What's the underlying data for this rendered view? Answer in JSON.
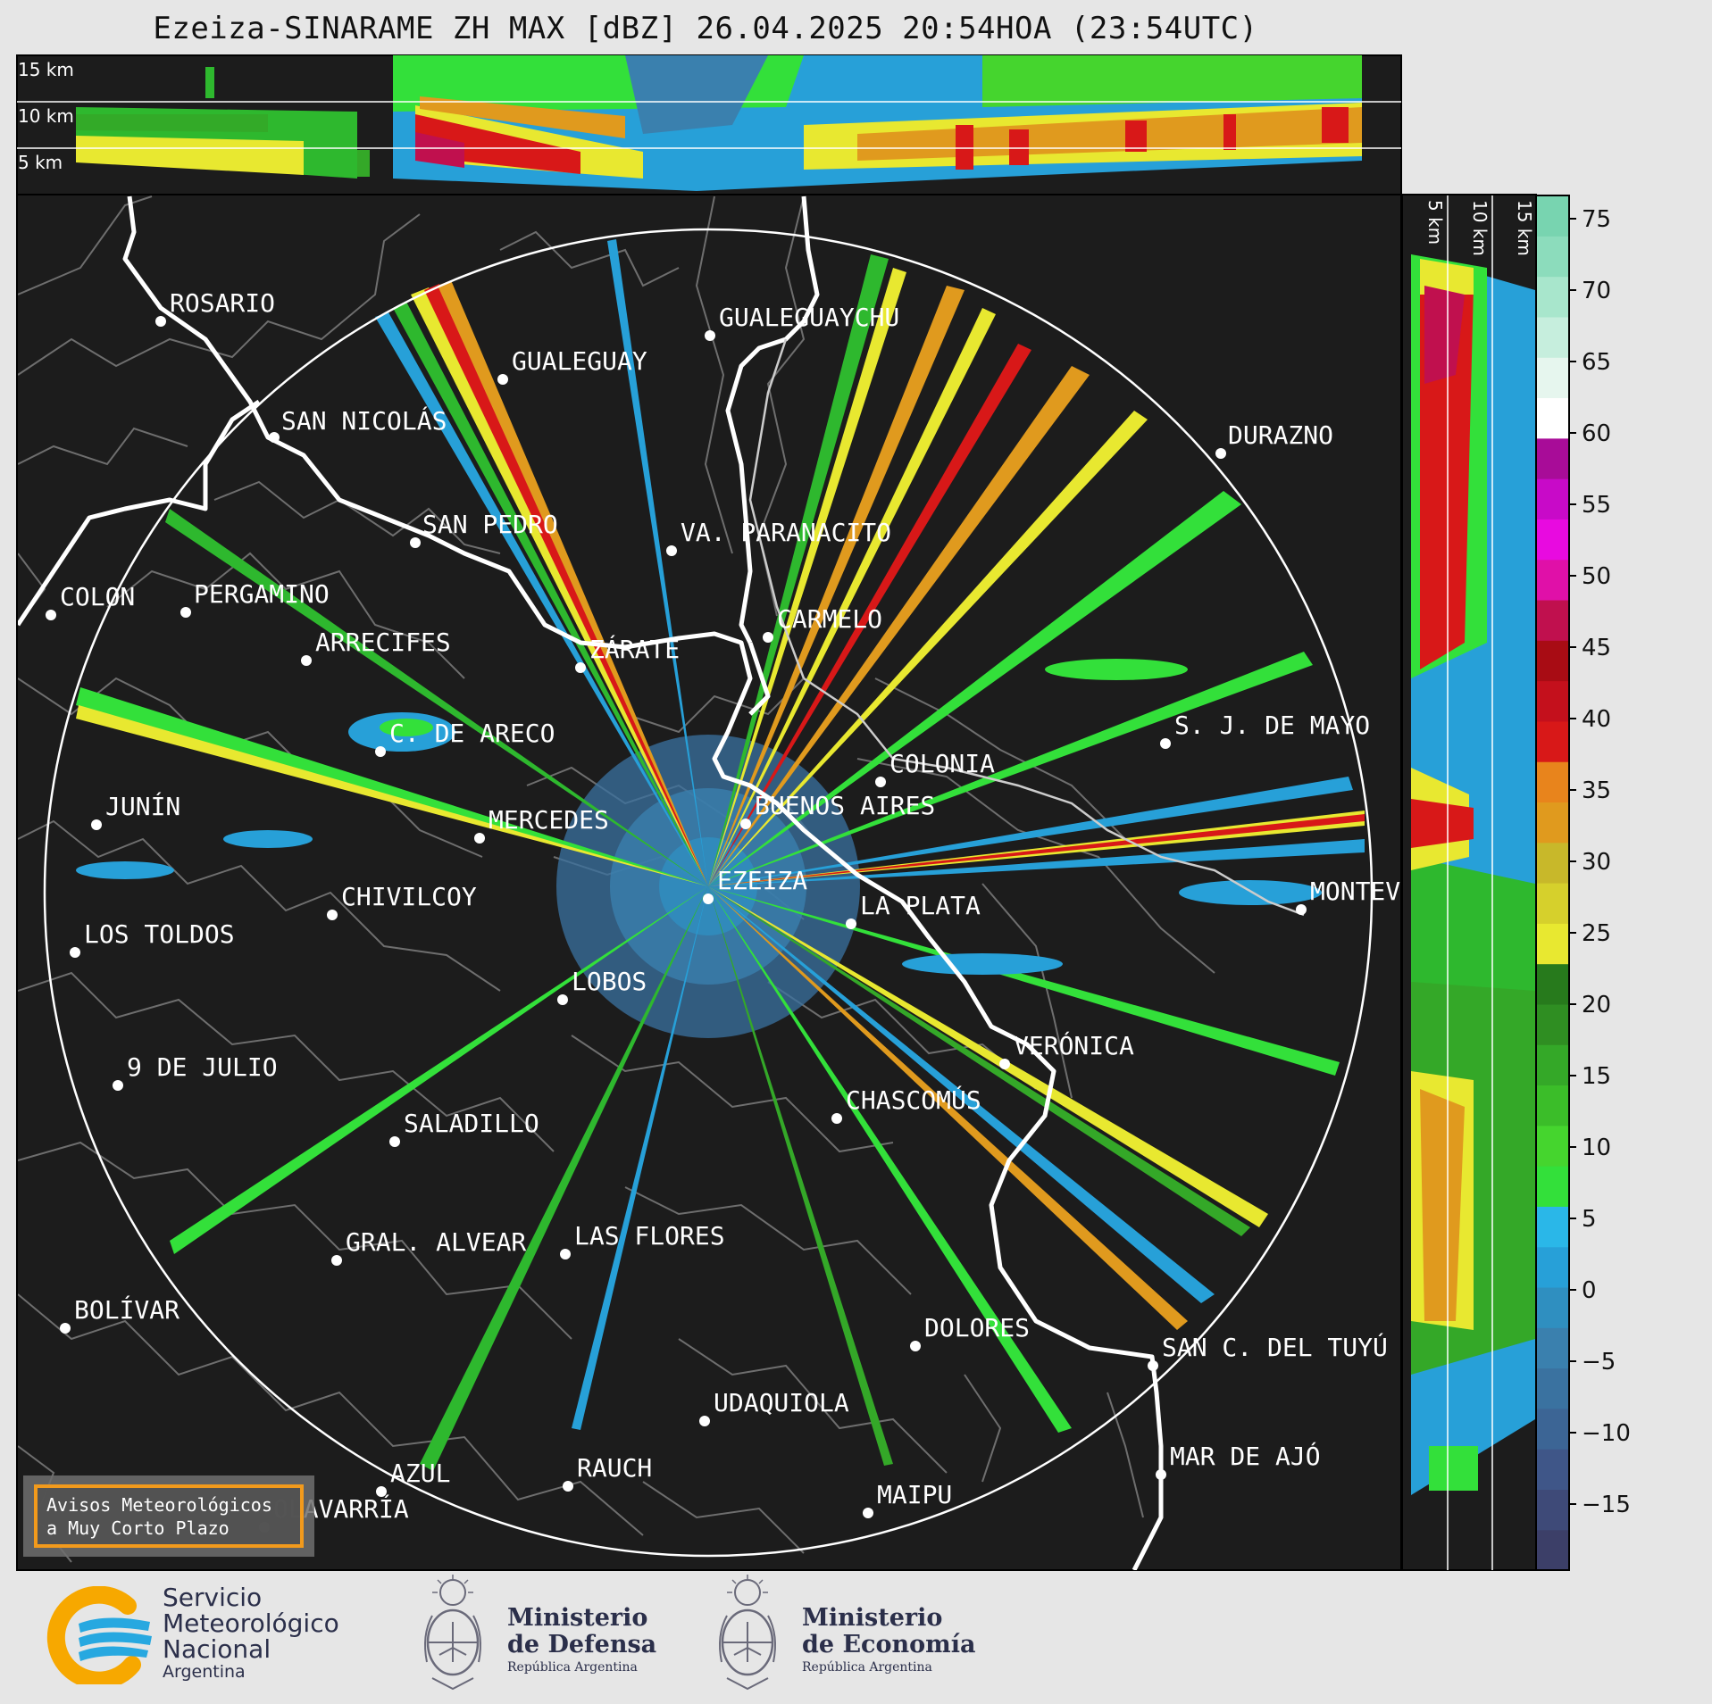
{
  "title": "Ezeiza-SINARAME ZH MAX [dBZ] 26.04.2025 20:54HOA (23:54UTC)",
  "top_panel": {
    "height_labels": [
      "15 km",
      "10 km",
      "5 km"
    ]
  },
  "right_panel": {
    "height_labels": [
      "5 km",
      "10 km",
      "15 km"
    ]
  },
  "colorbar": {
    "ticks": [
      "75",
      "70",
      "65",
      "60",
      "55",
      "50",
      "45",
      "40",
      "35",
      "30",
      "25",
      "20",
      "15",
      "10",
      "5",
      "0",
      "−5",
      "−10",
      "−15"
    ],
    "colors": [
      "#3c3f68",
      "#3e4a78",
      "#3f5688",
      "#3c6595",
      "#3a72a0",
      "#3a80ae",
      "#2f8fc0",
      "#27a0d8",
      "#2ab7e8",
      "#33e03a",
      "#45d52e",
      "#3bbd29",
      "#34a828",
      "#2f8e22",
      "#277a1c",
      "#e8e830",
      "#d6d02c",
      "#c8b82a",
      "#e09a1e",
      "#e8841c",
      "#d81818",
      "#c4101c",
      "#a80c14",
      "#c0104e",
      "#e010a8",
      "#e80ae0",
      "#c80ac8",
      "#a80c98",
      "#ffffff",
      "#e6f6ee",
      "#c6eedd",
      "#a8e6cc",
      "#8cdcbc",
      "#78d4b0"
    ]
  },
  "cities": [
    {
      "name": "ROSARIO"
    },
    {
      "name": "GUALEGUAYCHU"
    },
    {
      "name": "GUALEGUAY"
    },
    {
      "name": "SAN NICOLÁS"
    },
    {
      "name": "DURAZNO"
    },
    {
      "name": "SAN PEDRO"
    },
    {
      "name": "VA. PARANACITO"
    },
    {
      "name": "COLON"
    },
    {
      "name": "PERGAMINO"
    },
    {
      "name": "CARMELO"
    },
    {
      "name": "ARRECIFES"
    },
    {
      "name": "ZÁRATE"
    },
    {
      "name": "S. J. DE MAYO"
    },
    {
      "name": "C. DE ARECO"
    },
    {
      "name": "COLONIA"
    },
    {
      "name": "JUNÍN"
    },
    {
      "name": "MERCEDES"
    },
    {
      "name": "BUENOS AIRES"
    },
    {
      "name": "EZEIZA"
    },
    {
      "name": "MONTEV"
    },
    {
      "name": "CHIVILCOY"
    },
    {
      "name": "LA PLATA"
    },
    {
      "name": "LOS TOLDOS"
    },
    {
      "name": "LOBOS"
    },
    {
      "name": "VERÓNICA"
    },
    {
      "name": "9 DE JULIO"
    },
    {
      "name": "CHASCOMÚS"
    },
    {
      "name": "SALADILLO"
    },
    {
      "name": "GRAL. ALVEAR"
    },
    {
      "name": "LAS FLORES"
    },
    {
      "name": "BOLÍVAR"
    },
    {
      "name": "DOLORES"
    },
    {
      "name": "SAN C. DEL TUYÚ"
    },
    {
      "name": "UDAQUIOLA"
    },
    {
      "name": "MAR DE AJÓ"
    },
    {
      "name": "RAUCH"
    },
    {
      "name": "AZUL"
    },
    {
      "name": "MAIPU"
    },
    {
      "name": "OLAVARRÍA"
    }
  ],
  "avisos": {
    "line1": "Avisos Meteorológicos",
    "line2": "a Muy Corto Plazo"
  },
  "logos": {
    "smn": {
      "line1": "Servicio",
      "line2": "Meteorológico",
      "line3": "Nacional",
      "line4": "Argentina"
    },
    "defensa": {
      "line1": "Ministerio",
      "line2": "de Defensa",
      "line3": "República Argentina"
    },
    "economia": {
      "line1": "Ministerio",
      "line2": "de Economía",
      "line3": "República Argentina"
    }
  },
  "colors": {
    "panel_bg": "#1c1c1c",
    "page_bg": "#e6e6e6",
    "accent_orange": "#f29a1c",
    "smn_blue": "#27a8e0",
    "smn_yellow": "#f7a800"
  }
}
